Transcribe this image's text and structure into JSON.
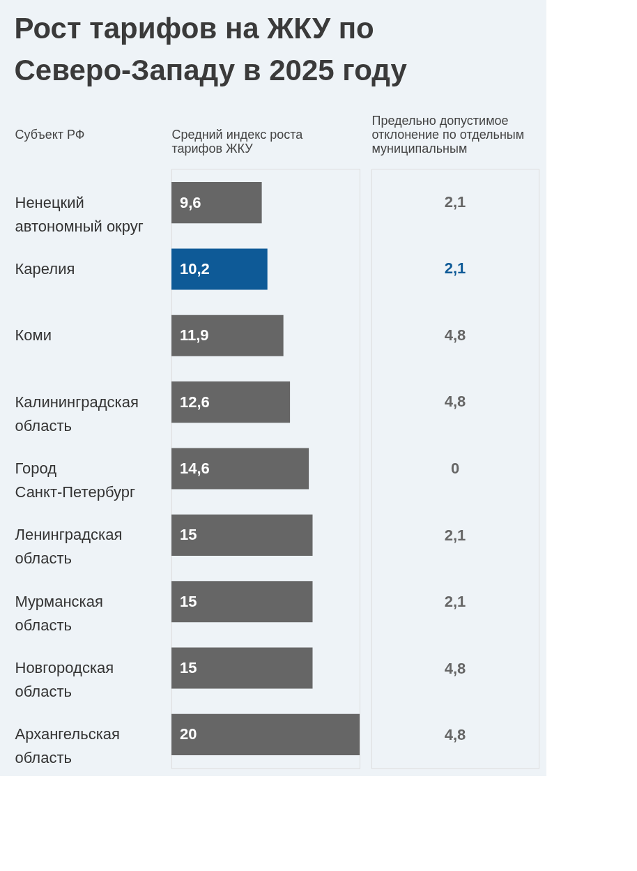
{
  "chart_data": [
    {
      "type": "bar",
      "orientation": "horizontal",
      "title": "Рост тарифов на ЖКУ по Северо-Западу в 2025 году",
      "ylabel": "Субъект РФ",
      "xlabel": "Средний индекс роста тарифов ЖКУ",
      "categories": [
        "Ненецкий автономный округ",
        "Карелия",
        "Коми",
        "Калининградская область",
        "Город Санкт-Петербург",
        "Ленинградская область",
        "Мурманская область",
        "Новгородская область",
        "Архангельская область"
      ],
      "values": [
        9.6,
        10.2,
        11.9,
        12.6,
        14.6,
        15,
        15,
        15,
        20
      ],
      "value_labels": [
        "9,6",
        "10,2",
        "11,9",
        "12,6",
        "14,6",
        "15",
        "15",
        "15",
        "20"
      ],
      "colors": [
        "#666666",
        "#0e5a97",
        "#666666",
        "#666666",
        "#666666",
        "#666666",
        "#666666",
        "#666666",
        "#666666"
      ],
      "tick_labels": "y",
      "grid": false
    },
    {
      "type": "other",
      "xlabel": "Предельно допустимое отклонение по отдельным муниципальным",
      "values": [
        2.1,
        2.1,
        4.8,
        4.8,
        0,
        2.1,
        2.1,
        4.8,
        4.8
      ],
      "value_labels": [
        "2,1",
        "2,1",
        "4,8",
        "4,8",
        "0",
        "2,1",
        "2,1",
        "4,8",
        "4,8"
      ],
      "colors": [
        "#666666",
        "#0e5a97",
        "#666666",
        "#666666",
        "#666666",
        "#666666",
        "#666666",
        "#666666",
        "#666666"
      ]
    }
  ]
}
